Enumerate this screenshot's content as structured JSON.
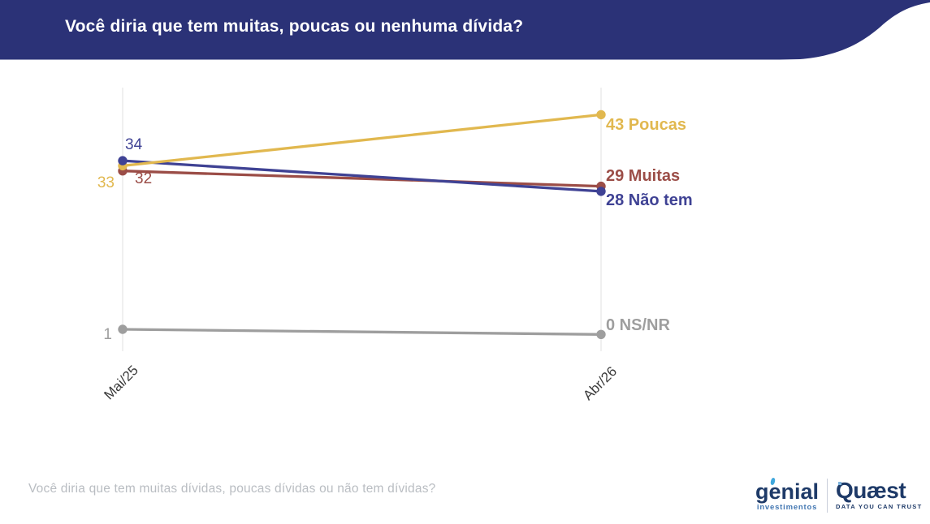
{
  "header": {
    "title": "Você diria que tem muitas, poucas ou nenhuma dívida?",
    "bg_color": "#2B3277"
  },
  "chart_data": {
    "type": "line",
    "title": "Você diria que tem muitas, poucas ou nenhuma dívida?",
    "x": [
      "Mai/25",
      "Abr/26"
    ],
    "series": [
      {
        "name": "Poucas",
        "values": [
          33,
          43
        ],
        "color": "#E1B84F",
        "start_label": "33",
        "end_label": "43 Poucas"
      },
      {
        "name": "Muitas",
        "values": [
          32,
          29
        ],
        "color": "#9B4D47",
        "start_label": "32",
        "end_label": "29 Muitas"
      },
      {
        "name": "Não tem",
        "values": [
          34,
          28
        ],
        "color": "#3F4294",
        "start_label": "34",
        "end_label": "28 Não tem"
      },
      {
        "name": "NS/NR",
        "values": [
          1,
          0
        ],
        "color": "#9E9E9E",
        "start_label": "1",
        "end_label": "0 NS/NR"
      }
    ],
    "xlabel": "",
    "ylabel": "",
    "ylim": [
      0,
      48
    ],
    "grid": "vertical-category-lines-only",
    "legend": "labels-at-line-ends"
  },
  "footer": {
    "question": "Você diria que tem muitas dívidas, poucas dívidas ou não tem dívidas?"
  },
  "logos": {
    "genial": {
      "name": "genial",
      "subtitle": "investimentos"
    },
    "quaest": {
      "name": "Quæst",
      "tagline": "DATA YOU CAN TRUST"
    }
  }
}
